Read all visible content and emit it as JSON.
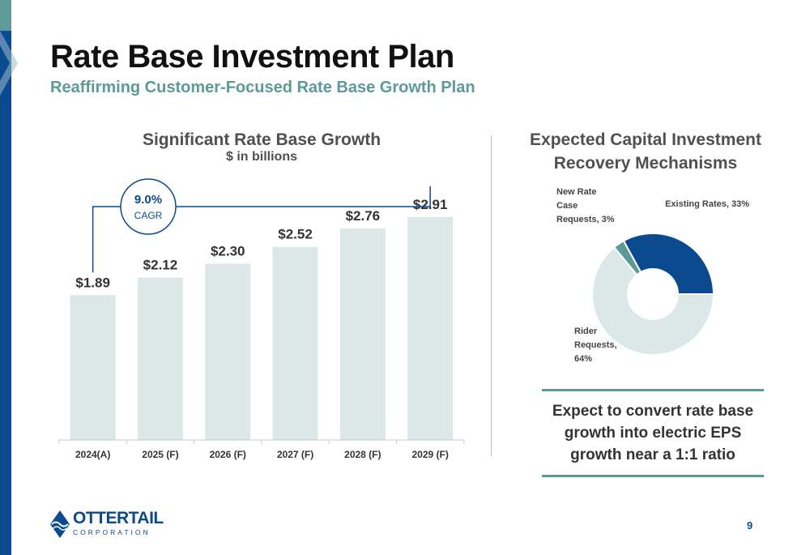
{
  "slide": {
    "title": "Rate Base Investment Plan",
    "subtitle": "Reaffirming Customer-Focused Rate Base Growth Plan",
    "page_number": "9",
    "takeaway": "Expect to convert rate base growth into electric EPS growth near a 1:1 ratio"
  },
  "logo": {
    "word": "OTTERTAIL",
    "tagline": "CORPORATION"
  },
  "colors": {
    "brand_blue": "#0b4a8f",
    "teal": "#5b9a98",
    "bar_fill": "#dce7e8",
    "rider_fill": "#dce7e8",
    "existing_fill": "#0b4a8f",
    "new_case_fill": "#5b9a98"
  },
  "chart_data": [
    {
      "type": "bar",
      "title": "Significant Rate Base Growth",
      "subtitle": "$ in billions",
      "categories": [
        "2024(A)",
        "2025 (F)",
        "2026 (F)",
        "2027 (F)",
        "2028 (F)",
        "2029 (F)"
      ],
      "values": [
        1.89,
        2.12,
        2.3,
        2.52,
        2.76,
        2.91
      ],
      "value_labels": [
        "$1.89",
        "$2.12",
        "$2.30",
        "$2.52",
        "$2.76",
        "$2.91"
      ],
      "ylim": [
        0,
        3.5
      ],
      "grid": false,
      "annotation": {
        "value": "9.0%",
        "label": "CAGR"
      }
    },
    {
      "type": "pie",
      "title": "Expected Capital Investment Recovery Mechanisms",
      "donut": true,
      "slices": [
        {
          "label": "Existing Rates, 33%",
          "value": 33
        },
        {
          "label": "Rider Requests, 64%",
          "value": 64
        },
        {
          "label": "New Rate Case Requests, 3%",
          "value": 3
        }
      ]
    }
  ]
}
